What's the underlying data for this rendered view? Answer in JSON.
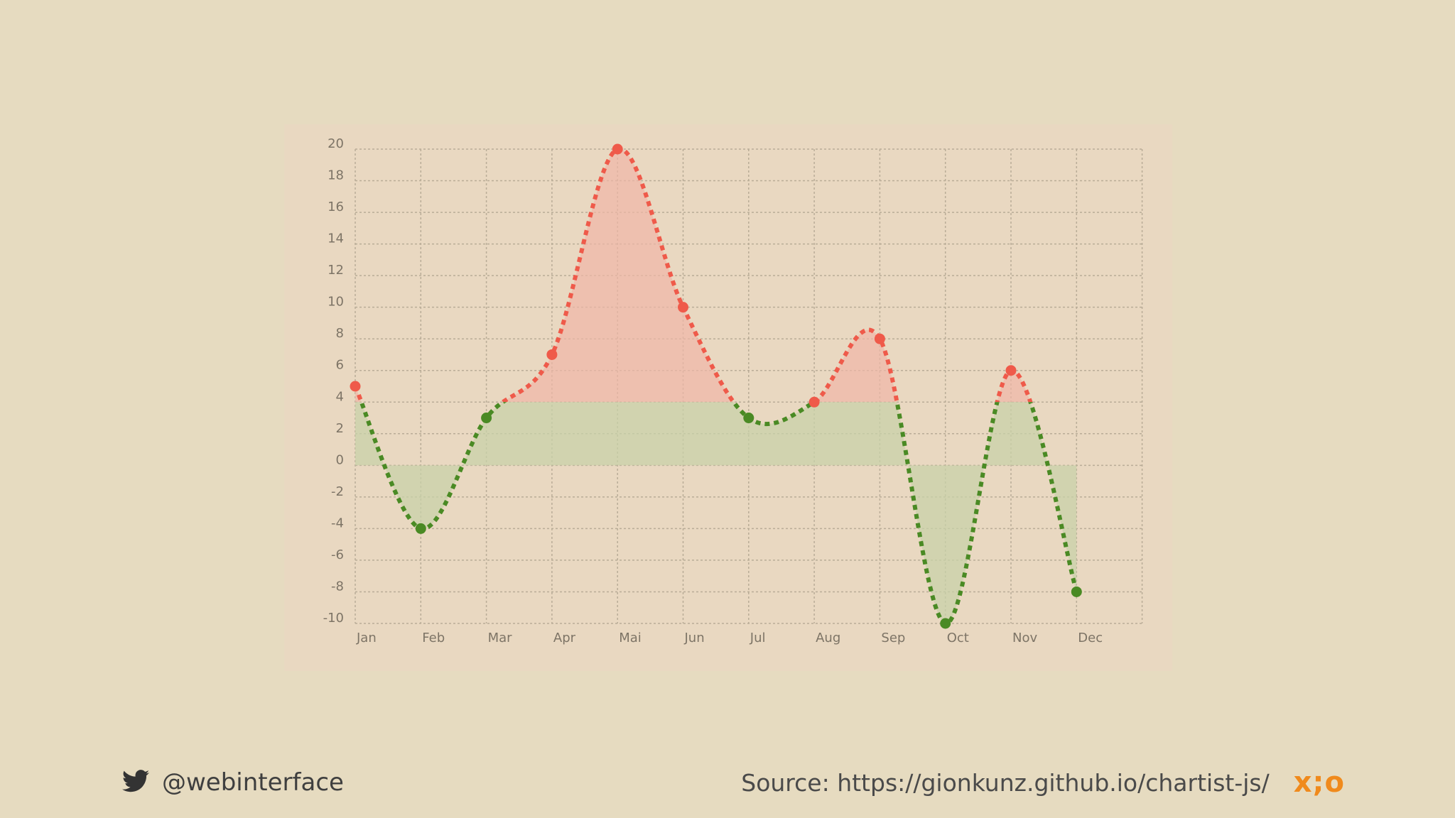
{
  "chart_data": {
    "type": "line",
    "categories": [
      "Jan",
      "Feb",
      "Mar",
      "Apr",
      "Mai",
      "Jun",
      "Jul",
      "Aug",
      "Sep",
      "Oct",
      "Nov",
      "Dec"
    ],
    "values": [
      5,
      -4,
      3,
      7,
      20,
      10,
      3,
      4,
      8,
      -10,
      6,
      -8
    ],
    "ylim": [
      -10,
      20
    ],
    "yticks": [
      20,
      18,
      16,
      14,
      12,
      10,
      8,
      6,
      4,
      2,
      0,
      -2,
      -4,
      -6,
      -8,
      -10
    ],
    "threshold": 4,
    "smooth": true,
    "grid": true,
    "colors": {
      "above": "#ef5a4a",
      "below": "#4a8a24",
      "above_fill": "#f0b7a6",
      "below_fill": "#c8d2a8",
      "grid": "#b9ac97"
    }
  },
  "footer": {
    "twitter_icon": "twitter-bird-icon",
    "handle": "@webinterface",
    "source": "Source: https://gionkunz.github.io/chartist-js/",
    "brand_left": "x;",
    "brand_right": "o",
    "brand_color": "#f08a1c"
  }
}
